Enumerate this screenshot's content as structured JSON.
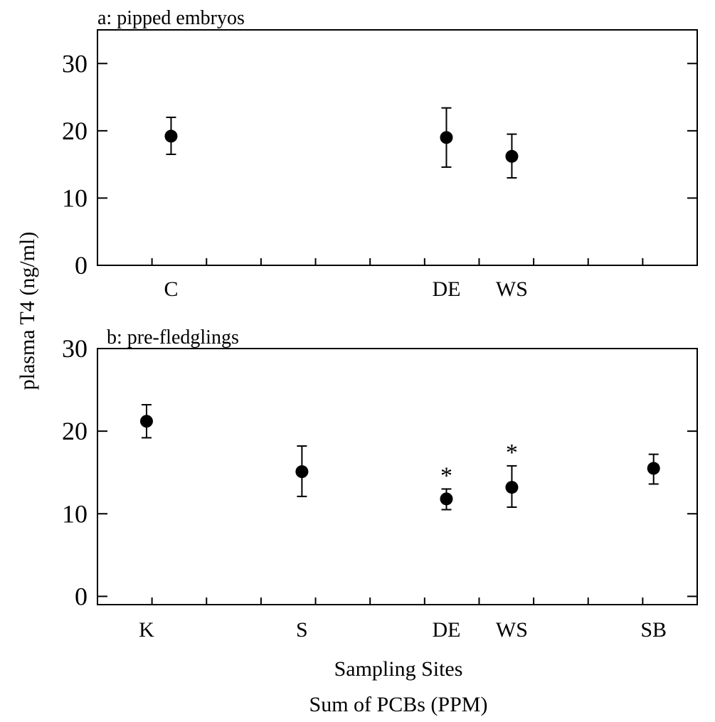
{
  "figure": {
    "ylabel": "plasma T4 (ng/ml)",
    "xlabel_line1": "Sampling  Sites",
    "xlabel_line2": "Sum of PCBs (PPM)"
  },
  "chart_data": [
    {
      "type": "scatter",
      "title": "a: pipped embryos",
      "ylim": [
        0,
        35
      ],
      "yticks": [
        0,
        10,
        20,
        30
      ],
      "xlim": [
        0,
        11
      ],
      "minor_xticks": [
        1,
        2,
        3,
        4,
        5,
        6,
        7,
        8,
        9,
        10
      ],
      "points": [
        {
          "label": "C",
          "x": 1.35,
          "y": 19.2,
          "lower": 16.5,
          "upper": 22.0,
          "marker": ""
        },
        {
          "label": "DE",
          "x": 6.4,
          "y": 19.0,
          "lower": 14.6,
          "upper": 23.4,
          "marker": ""
        },
        {
          "label": "WS",
          "x": 7.6,
          "y": 16.2,
          "lower": 13.0,
          "upper": 19.5,
          "marker": ""
        }
      ]
    },
    {
      "type": "scatter",
      "title": "b: pre-fledglings",
      "ylim": [
        -1,
        30
      ],
      "yticks": [
        0,
        10,
        20,
        30
      ],
      "xlim": [
        0,
        11
      ],
      "minor_xticks": [
        1,
        2,
        3,
        4,
        5,
        6,
        7,
        8,
        9,
        10
      ],
      "points": [
        {
          "label": "K",
          "x": 0.9,
          "y": 21.2,
          "lower": 19.2,
          "upper": 23.2,
          "marker": ""
        },
        {
          "label": "S",
          "x": 3.75,
          "y": 15.1,
          "lower": 12.1,
          "upper": 18.2,
          "marker": ""
        },
        {
          "label": "DE",
          "x": 6.4,
          "y": 11.8,
          "lower": 10.5,
          "upper": 13.0,
          "marker": "*"
        },
        {
          "label": "WS",
          "x": 7.6,
          "y": 13.2,
          "lower": 10.8,
          "upper": 15.8,
          "marker": "*"
        },
        {
          "label": "SB",
          "x": 10.2,
          "y": 15.5,
          "lower": 13.6,
          "upper": 17.2,
          "marker": ""
        }
      ]
    }
  ]
}
